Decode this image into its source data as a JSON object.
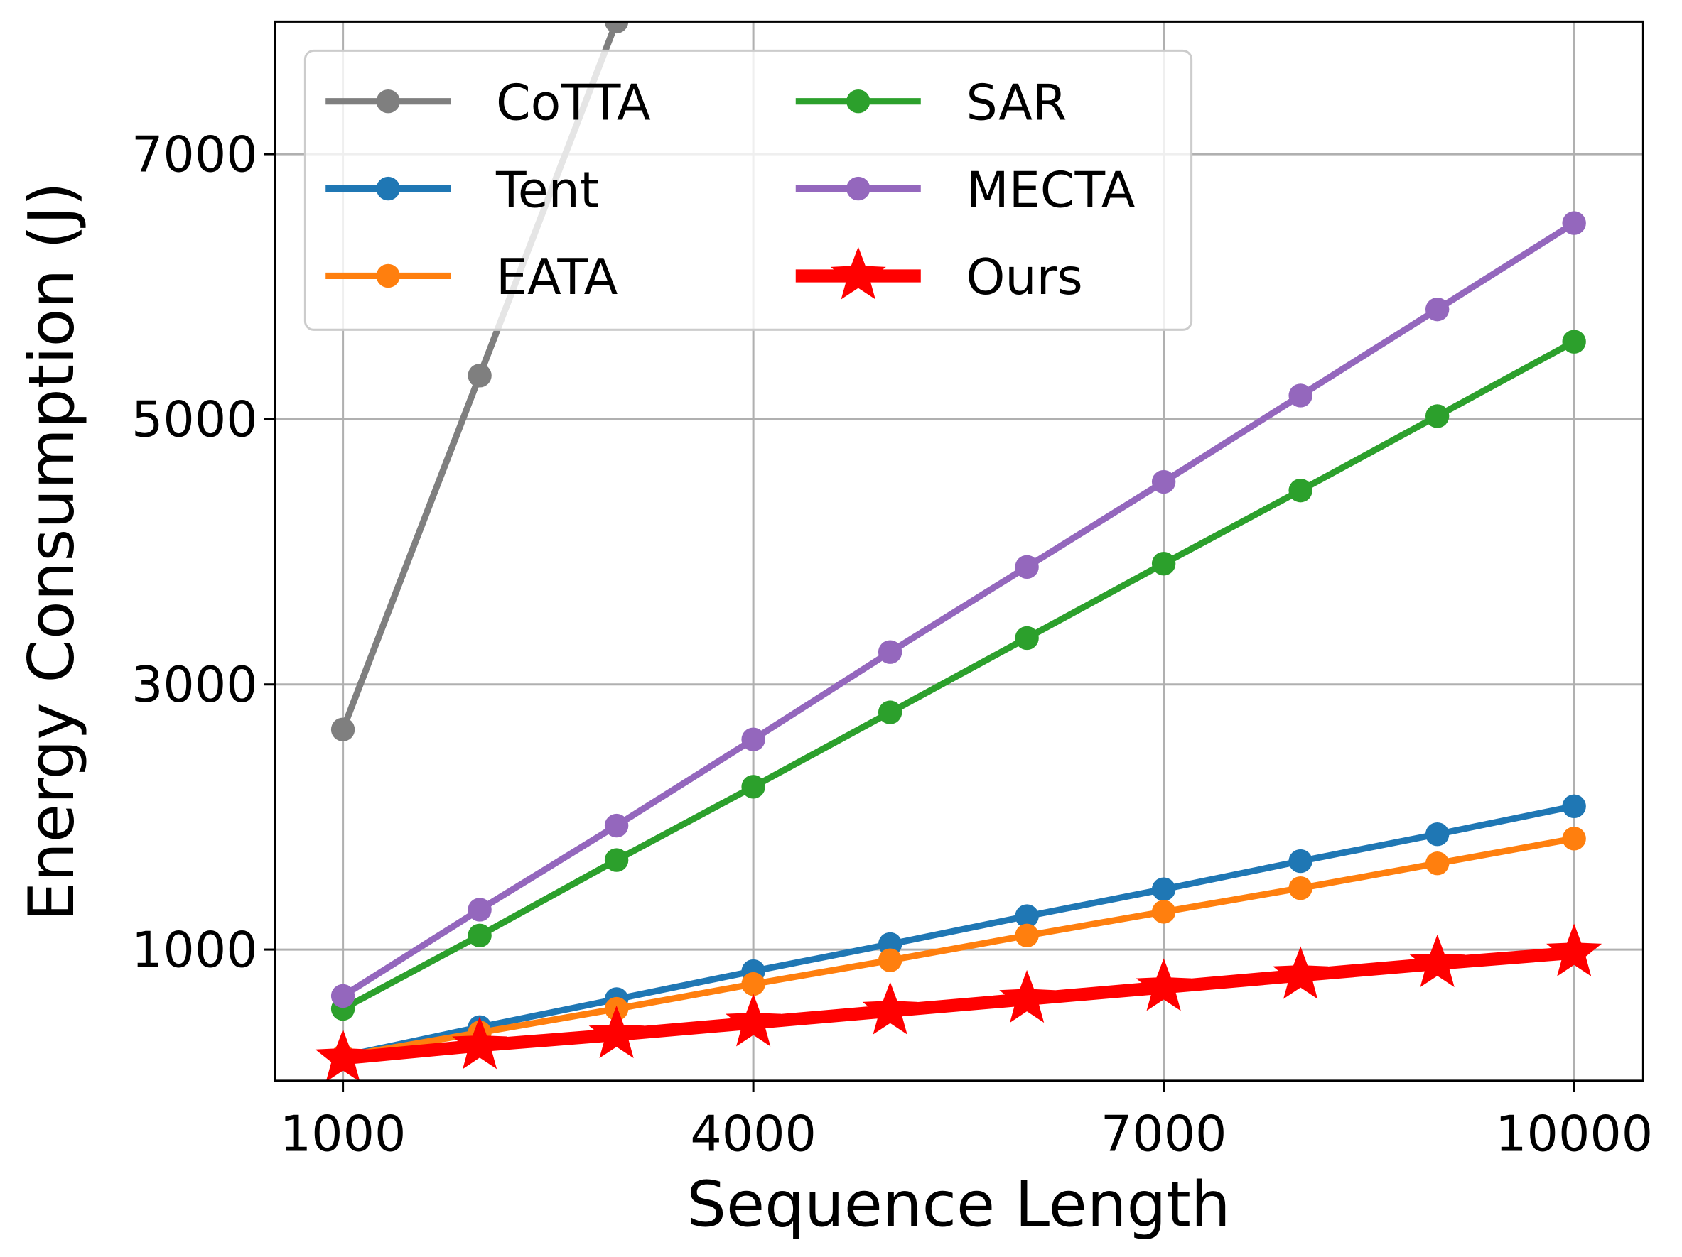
{
  "chart_data": {
    "type": "line",
    "xlabel": "Sequence Length",
    "ylabel": "Energy Consumption (J)",
    "x": [
      1000,
      2000,
      3000,
      4000,
      5000,
      6000,
      7000,
      8000,
      9000,
      10000
    ],
    "series": [
      {
        "name": "CoTTA",
        "color": "#7f7f7f",
        "marker": "circle",
        "values": [
          2660,
          5330,
          8000,
          null,
          null,
          null,
          null,
          null,
          null,
          null
        ]
      },
      {
        "name": "Tent",
        "color": "#1f77b4",
        "marker": "circle",
        "values": [
          195,
          415,
          626,
          837,
          1041,
          1252,
          1455,
          1667,
          1870,
          2081
        ]
      },
      {
        "name": "EATA",
        "color": "#ff7f0e",
        "marker": "circle",
        "values": [
          195,
          374,
          553,
          740,
          919,
          1106,
          1285,
          1463,
          1650,
          1837
        ]
      },
      {
        "name": "SAR",
        "color": "#2ca02c",
        "marker": "circle",
        "values": [
          553,
          1106,
          1675,
          2228,
          2789,
          3350,
          3911,
          4463,
          5024,
          5585
        ]
      },
      {
        "name": "MECTA",
        "color": "#9467bd",
        "marker": "circle",
        "values": [
          650,
          1301,
          1935,
          2585,
          3244,
          3886,
          4528,
          5179,
          5829,
          6480
        ]
      },
      {
        "name": "Ours",
        "color": "#ff0000",
        "marker": "star",
        "values": [
          179,
          276,
          358,
          447,
          537,
          626,
          715,
          805,
          894,
          976
        ]
      }
    ],
    "xlim": [
      503,
      10505
    ],
    "xticks": [
      1000,
      4000,
      7000,
      10000
    ],
    "ylim": [
      10,
      8000
    ],
    "yticks": [
      1000,
      3000,
      5000,
      7000
    ],
    "grid": true,
    "legend": "upper left",
    "legend_columns": 2
  }
}
